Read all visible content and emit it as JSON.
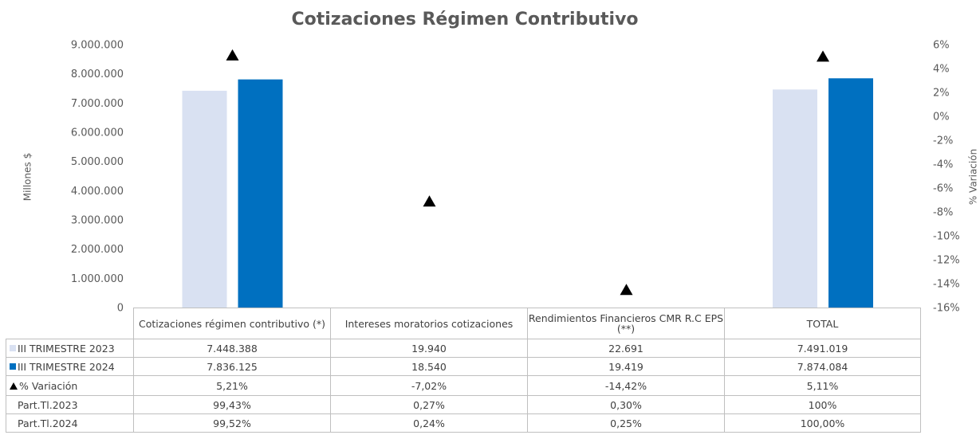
{
  "chart_data": {
    "type": "bar",
    "title": "Cotizaciones Régimen Contributivo",
    "y_label": "Millones $",
    "y2_label": "% Variación",
    "categories": [
      "Cotizaciones régimen contributivo (*)",
      "Intereses moratorios cotizaciones",
      "Rendimientos Financieros CMR R.C EPS (**)",
      "TOTAL"
    ],
    "series": [
      {
        "name": "III TRIMESTRE 2023",
        "color": "#d9e1f2",
        "values": [
          7448388,
          19940,
          22691,
          7491019
        ],
        "value_labels": [
          "7.448.388",
          "19.940",
          "22.691",
          "7.491.019"
        ]
      },
      {
        "name": "III TRIMESTRE 2024",
        "color": "#0070c0",
        "values": [
          7836125,
          18540,
          19419,
          7874084
        ],
        "value_labels": [
          "7.836.125",
          "18.540",
          "19.419",
          "7.874.084"
        ]
      },
      {
        "name": "% Variación",
        "color": "#000000",
        "axis": "y2",
        "marker": "triangle",
        "values": [
          5.21,
          -7.02,
          -14.42,
          5.11
        ],
        "value_labels": [
          "5,21%",
          "-7,02%",
          "-14,42%",
          "5,11%"
        ]
      }
    ],
    "table_rows": [
      {
        "name": "Part.Tl.2023",
        "cells": [
          "99,43%",
          "0,27%",
          "0,30%",
          "100%"
        ]
      },
      {
        "name": "Part.Tl.2024",
        "cells": [
          "99,52%",
          "0,24%",
          "0,25%",
          "100,00%"
        ]
      }
    ],
    "ylim": [
      0,
      9000000
    ],
    "yticks": [
      0,
      {
        "value": 1000000,
        "label": "1.000.000"
      },
      {
        "value": 2000000,
        "label": "2.000.000"
      },
      {
        "value": 3000000,
        "label": "3.000.000"
      },
      {
        "value": 4000000,
        "label": "4.000.000"
      },
      {
        "value": 5000000,
        "label": "5.000.000"
      },
      {
        "value": 6000000,
        "label": "6.000.000"
      },
      {
        "value": 7000000,
        "label": "7.000.000"
      },
      {
        "value": 8000000,
        "label": "8.000.000"
      },
      {
        "value": 9000000,
        "label": "9.000.000"
      }
    ],
    "y2lim": [
      -16,
      6
    ],
    "y2ticks": [
      {
        "value": -16,
        "label": "-16%"
      },
      {
        "value": -14,
        "label": "-14%"
      },
      {
        "value": -12,
        "label": "-12%"
      },
      {
        "value": -10,
        "label": "-10%"
      },
      {
        "value": -8,
        "label": "-8%"
      },
      {
        "value": -6,
        "label": "-6%"
      },
      {
        "value": -4,
        "label": "-4%"
      },
      {
        "value": -2,
        "label": "-2%"
      },
      {
        "value": 0,
        "label": "0%"
      },
      {
        "value": 2,
        "label": "2%"
      },
      {
        "value": 4,
        "label": "4%"
      },
      {
        "value": 6,
        "label": "6%"
      }
    ],
    "grid": false
  }
}
